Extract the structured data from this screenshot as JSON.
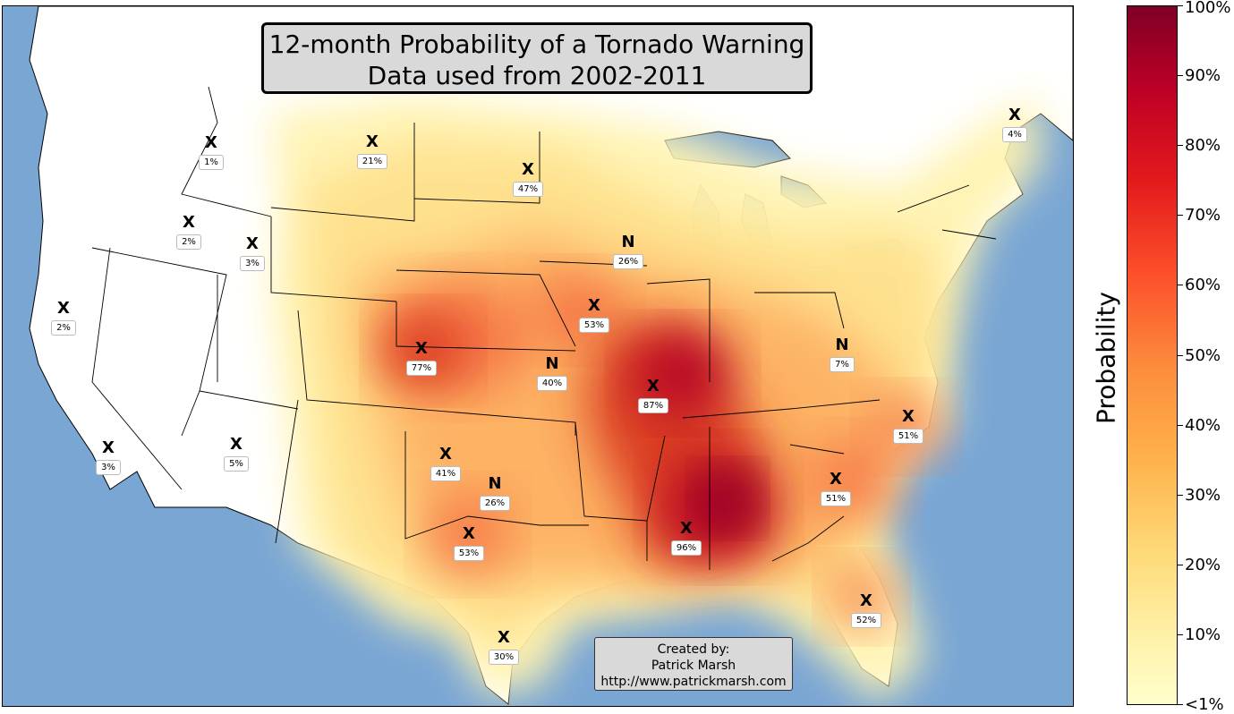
{
  "map": {
    "title_line1": "12-month Probability of a Tornado Warning",
    "title_line2": "Data used from 2002-2011",
    "credit": {
      "line1": "Created by:",
      "line2": "Patrick Marsh",
      "line3": "http://www.patrickmarsh.com"
    },
    "colors": {
      "ocean": "#7aa6d4",
      "land": "#ffffff",
      "low": "#fff3b0",
      "mid": "#fdae61",
      "high": "#d7191c",
      "max": "#800026"
    }
  },
  "markers": [
    {
      "symbol": "X",
      "value": "1%"
    },
    {
      "symbol": "X",
      "value": "21%"
    },
    {
      "symbol": "X",
      "value": "47%"
    },
    {
      "symbol": "X",
      "value": "4%"
    },
    {
      "symbol": "X",
      "value": "2%"
    },
    {
      "symbol": "X",
      "value": "3%"
    },
    {
      "symbol": "N",
      "value": "26%"
    },
    {
      "symbol": "X",
      "value": "2%"
    },
    {
      "symbol": "X",
      "value": "53%"
    },
    {
      "symbol": "X",
      "value": "77%"
    },
    {
      "symbol": "N",
      "value": "40%"
    },
    {
      "symbol": "N",
      "value": "7%"
    },
    {
      "symbol": "X",
      "value": "87%"
    },
    {
      "symbol": "X",
      "value": "51%"
    },
    {
      "symbol": "X",
      "value": "3%"
    },
    {
      "symbol": "X",
      "value": "5%"
    },
    {
      "symbol": "X",
      "value": "41%"
    },
    {
      "symbol": "N",
      "value": "26%"
    },
    {
      "symbol": "X",
      "value": "51%"
    },
    {
      "symbol": "X",
      "value": "53%"
    },
    {
      "symbol": "X",
      "value": "96%"
    },
    {
      "symbol": "X",
      "value": "52%"
    },
    {
      "symbol": "X",
      "value": "30%"
    }
  ],
  "colorbar": {
    "label": "Probability",
    "ticks": [
      "100%",
      "90%",
      "80%",
      "70%",
      "60%",
      "50%",
      "40%",
      "30%",
      "20%",
      "10%",
      "<1%"
    ]
  }
}
